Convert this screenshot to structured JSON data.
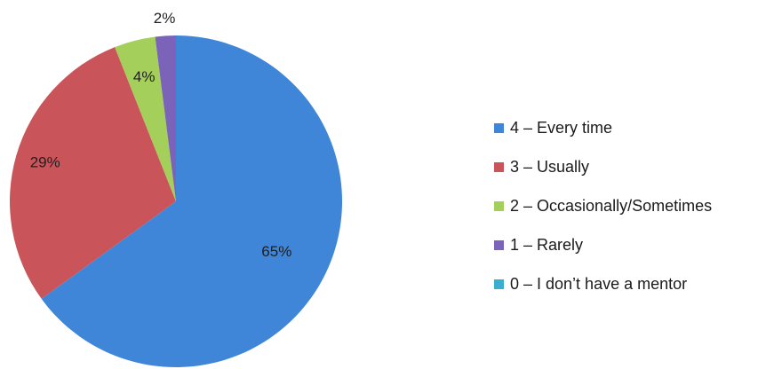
{
  "chart_data": {
    "type": "pie",
    "categories": [
      "4 – Every time",
      "3 – Usually",
      "2 – Occasionally/Sometimes",
      "1 – Rarely",
      "0 – I don’t have a mentor"
    ],
    "values": [
      65,
      29,
      4,
      2,
      0
    ],
    "data_labels": [
      "65%",
      "29%",
      "4%",
      "2%",
      ""
    ],
    "colors": [
      "#3f86d8",
      "#c9555a",
      "#a5cf5b",
      "#7a63b8",
      "#3aaecd"
    ],
    "start_angle_deg": 0,
    "direction": "clockwise",
    "legend_position": "right",
    "title": ""
  }
}
